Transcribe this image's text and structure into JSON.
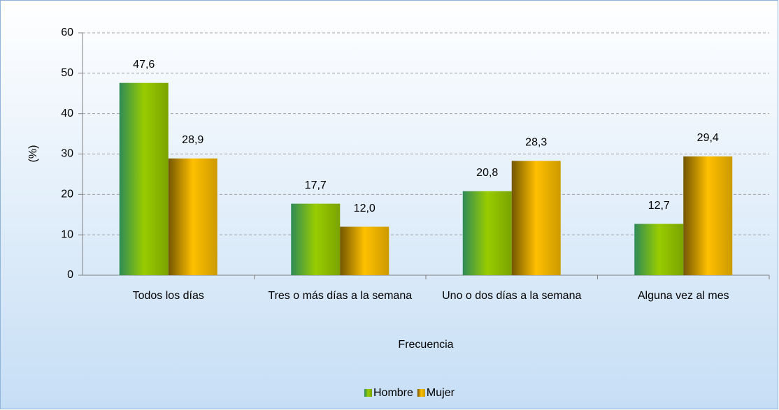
{
  "chart_data": {
    "type": "bar",
    "x_label": "Frecuencia",
    "y_label": "(%)",
    "categories": [
      "Todos los días",
      "Tres o más días a la semana",
      "Uno o dos días a la semana",
      "Alguna vez al mes"
    ],
    "series": [
      {
        "name": "Hombre",
        "color": "#99cc00",
        "values": [
          47.6,
          17.7,
          20.8,
          12.7
        ],
        "value_labels": [
          "47,6",
          "17,7",
          "20,8",
          "12,7"
        ]
      },
      {
        "name": "Mujer",
        "color": "#ffc000",
        "values": [
          28.9,
          12.0,
          28.3,
          29.4
        ],
        "value_labels": [
          "28,9",
          "12,0",
          "28,3",
          "29,4"
        ]
      }
    ],
    "ylim": [
      0,
      60
    ],
    "yticks": [
      0,
      10,
      20,
      30,
      40,
      50,
      60
    ],
    "grid": true,
    "legend": "bottom"
  }
}
